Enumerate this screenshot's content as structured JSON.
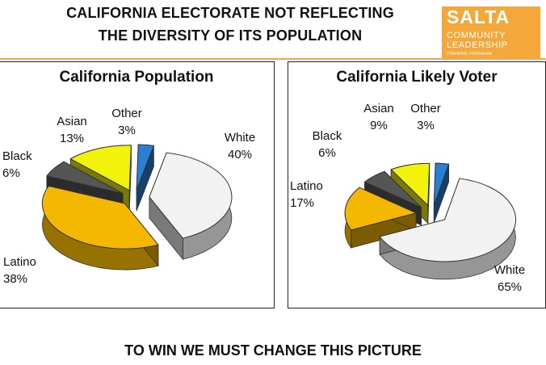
{
  "header": {
    "title_line1": "CALIFORNIA ELECTORATE NOT REFLECTING",
    "title_line2": "THE DIVERSITY OF ITS POPULATION"
  },
  "logo": {
    "line1": "SALTA",
    "line2": "COMMUNITY",
    "line3": "LEADERSHIP",
    "line4": "TRAINING PROGRAM"
  },
  "footer": {
    "text": "TO WIN WE MUST CHANGE THIS PICTURE"
  },
  "colors": {
    "White": "#f2f2f2",
    "Latino": "#f5b800",
    "Black": "#555555",
    "Asian": "#f2f20a",
    "Other": "#2a7fd4",
    "accent": "#f4a83a"
  },
  "chart_data": [
    {
      "type": "pie",
      "title": "California Population",
      "categories": [
        "White",
        "Latino",
        "Black",
        "Asian",
        "Other"
      ],
      "values": [
        40,
        38,
        6,
        13,
        3
      ],
      "labels": [
        "40%",
        "38%",
        "6%",
        "13%",
        "3%"
      ]
    },
    {
      "type": "pie",
      "title": "California Likely Voter",
      "categories": [
        "White",
        "Latino",
        "Black",
        "Asian",
        "Other"
      ],
      "values": [
        65,
        17,
        6,
        9,
        3
      ],
      "labels": [
        "65%",
        "17%",
        "6%",
        "9%",
        "3%"
      ]
    }
  ]
}
